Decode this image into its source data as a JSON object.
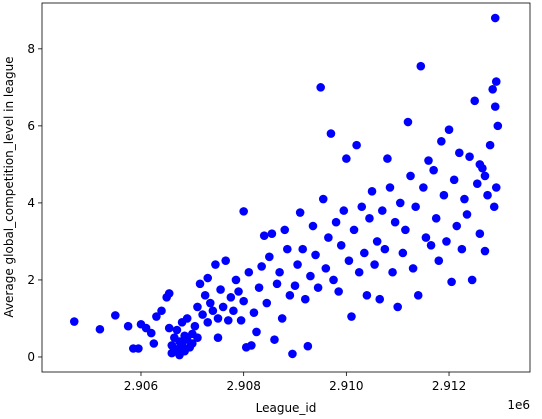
{
  "chart_data": {
    "type": "scatter",
    "xlabel": "League_id",
    "ylabel": "Average global_competition_level in league",
    "x_offset_label": "1e6",
    "color": "#0000ff",
    "xlim": [
      2904072,
      2913577
    ],
    "ylim": [
      -0.39,
      9.19
    ],
    "xticks": [
      {
        "value": 2906000,
        "label": "2.906"
      },
      {
        "value": 2908000,
        "label": "2.908"
      },
      {
        "value": 2910000,
        "label": "2.910"
      },
      {
        "value": 2912000,
        "label": "2.912"
      }
    ],
    "yticks": [
      0,
      2,
      4,
      6,
      8
    ],
    "x": [
      2904700,
      2905200,
      2905500,
      2905750,
      2905850,
      2905950,
      2906000,
      2906100,
      2906200,
      2906250,
      2906300,
      2906400,
      2906500,
      2906550,
      2906550,
      2906600,
      2906600,
      2906650,
      2906700,
      2906700,
      2906750,
      2906750,
      2906800,
      2906800,
      2906850,
      2906850,
      2906900,
      2906900,
      2906950,
      2907000,
      2907000,
      2907050,
      2907100,
      2907100,
      2907150,
      2907200,
      2907250,
      2907300,
      2907300,
      2907350,
      2907400,
      2907450,
      2907500,
      2907500,
      2907550,
      2907600,
      2907650,
      2907700,
      2907750,
      2907800,
      2907850,
      2907900,
      2907950,
      2908000,
      2908000,
      2908050,
      2908100,
      2908150,
      2908200,
      2908250,
      2908300,
      2908350,
      2908400,
      2908450,
      2908500,
      2908550,
      2908600,
      2908650,
      2908700,
      2908750,
      2908800,
      2908850,
      2908900,
      2908950,
      2909000,
      2909050,
      2909100,
      2909150,
      2909200,
      2909250,
      2909300,
      2909350,
      2909400,
      2909450,
      2909500,
      2909550,
      2909600,
      2909650,
      2909700,
      2909750,
      2909800,
      2909850,
      2909900,
      2909950,
      2910000,
      2910050,
      2910100,
      2910150,
      2910200,
      2910250,
      2910300,
      2910350,
      2910400,
      2910450,
      2910500,
      2910550,
      2910600,
      2910650,
      2910700,
      2910750,
      2910800,
      2910850,
      2910900,
      2910950,
      2911000,
      2911050,
      2911100,
      2911150,
      2911200,
      2911250,
      2911300,
      2911350,
      2911400,
      2911450,
      2911500,
      2911550,
      2911600,
      2911650,
      2911700,
      2911750,
      2911800,
      2911850,
      2911900,
      2911950,
      2912000,
      2912050,
      2912100,
      2912150,
      2912200,
      2912250,
      2912300,
      2912350,
      2912400,
      2912450,
      2912500,
      2912550,
      2912600,
      2912650,
      2912700,
      2912750,
      2912800,
      2912850,
      2912880,
      2912900,
      2912900,
      2912920,
      2912920,
      2912950,
      2912700,
      2912600
    ],
    "y": [
      0.92,
      0.72,
      1.08,
      0.8,
      0.22,
      0.22,
      0.85,
      0.75,
      0.62,
      0.35,
      1.05,
      1.2,
      1.55,
      1.65,
      0.75,
      0.3,
      0.1,
      0.5,
      0.2,
      0.7,
      0.4,
      0.05,
      0.9,
      0.3,
      0.55,
      0.15,
      0.45,
      1.0,
      0.25,
      0.6,
      0.35,
      0.8,
      1.3,
      0.5,
      1.9,
      1.1,
      1.6,
      2.05,
      0.9,
      1.4,
      1.2,
      2.4,
      1.0,
      0.5,
      1.75,
      1.3,
      2.5,
      0.95,
      1.55,
      1.2,
      2.0,
      1.7,
      0.95,
      3.78,
      1.45,
      0.25,
      2.2,
      0.3,
      1.15,
      0.65,
      1.8,
      2.35,
      3.15,
      1.4,
      2.6,
      3.2,
      0.45,
      1.9,
      2.2,
      1.0,
      3.3,
      2.8,
      1.6,
      0.08,
      1.85,
      2.4,
      3.75,
      2.8,
      1.5,
      0.28,
      2.1,
      3.4,
      2.65,
      1.8,
      7.0,
      4.1,
      2.3,
      3.1,
      5.8,
      2.0,
      3.5,
      1.7,
      2.9,
      3.8,
      5.15,
      2.5,
      1.05,
      3.3,
      5.5,
      2.2,
      3.9,
      2.7,
      1.6,
      3.6,
      4.3,
      2.4,
      3.0,
      1.5,
      3.8,
      2.8,
      5.15,
      4.4,
      2.2,
      3.5,
      1.3,
      4.0,
      2.7,
      3.3,
      6.1,
      4.7,
      2.3,
      3.9,
      1.6,
      7.55,
      4.4,
      3.1,
      5.1,
      2.9,
      4.85,
      3.6,
      2.5,
      5.6,
      4.2,
      3.0,
      5.9,
      1.95,
      4.6,
      3.4,
      5.3,
      2.8,
      4.1,
      3.7,
      5.2,
      2.0,
      6.65,
      4.5,
      3.2,
      4.9,
      2.75,
      4.2,
      5.5,
      6.95,
      3.9,
      8.8,
      6.5,
      7.15,
      4.4,
      6.0,
      4.7,
      5.0
    ]
  }
}
